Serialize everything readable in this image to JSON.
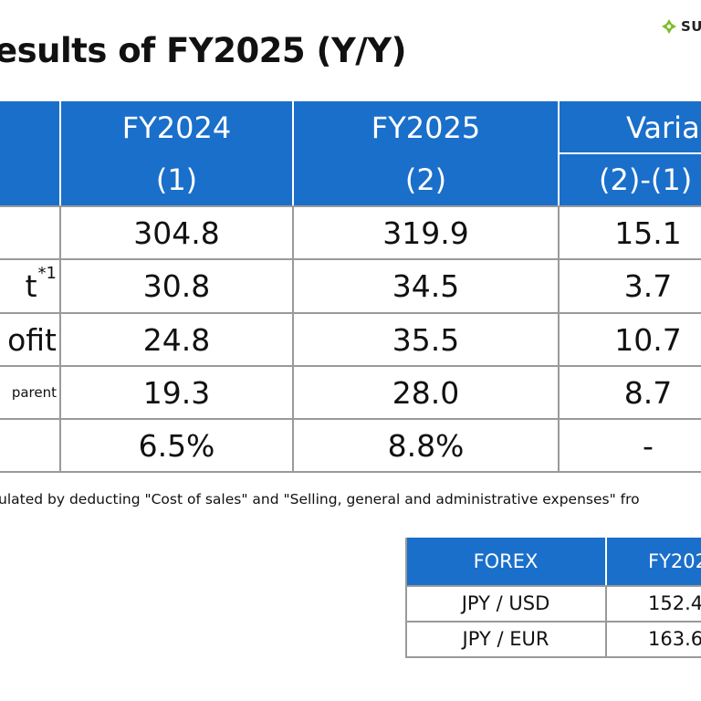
{
  "brand": {
    "logo_text": "SU",
    "logo_color": "#7bbf2a"
  },
  "title": "esults of FY2025 (Y/Y)",
  "table": {
    "header_color": "#1a6fca",
    "columns": {
      "fy2024": {
        "label": "FY2024",
        "sub": "(1)"
      },
      "fy2025": {
        "label": "FY2025",
        "sub": "(2)"
      },
      "variance": {
        "label": "Varia",
        "sub": "(2)-(1)"
      }
    },
    "rows": [
      {
        "label": "",
        "fy2024": "304.8",
        "fy2025": "319.9",
        "variance": "15.1"
      },
      {
        "label": "t",
        "label_sup": "*1",
        "fy2024": "30.8",
        "fy2025": "34.5",
        "variance": "3.7"
      },
      {
        "label": "ofit",
        "fy2024": "24.8",
        "fy2025": "35.5",
        "variance": "10.7"
      },
      {
        "label": "parent",
        "fy2024": "19.3",
        "fy2025": "28.0",
        "variance": "8.7"
      },
      {
        "label": "",
        "fy2024": "6.5%",
        "fy2025": "8.8%",
        "variance": "-"
      }
    ]
  },
  "footnote": "ulated by deducting \"Cost of sales\" and \"Selling, general and administrative expenses\" fro",
  "forex": {
    "header_label": "FOREX",
    "header_year": "FY202",
    "rows": [
      {
        "pair": "JPY / USD",
        "value": "152.4"
      },
      {
        "pair": "JPY / EUR",
        "value": "163.6"
      }
    ]
  }
}
